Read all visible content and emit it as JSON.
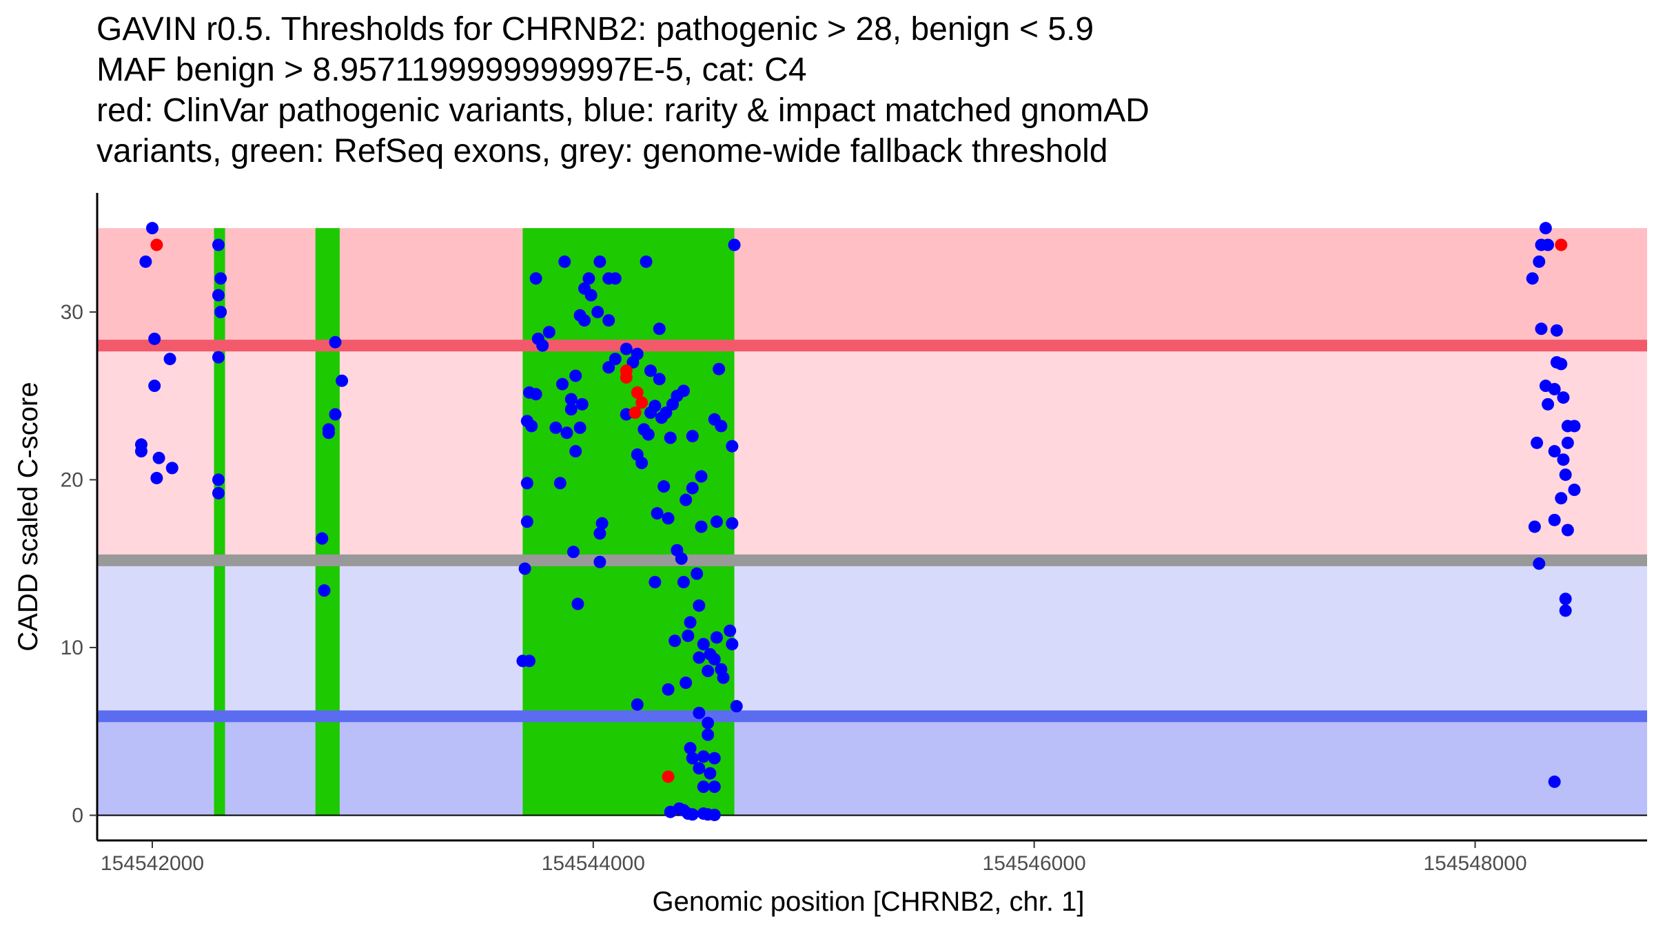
{
  "chart_data": {
    "type": "scatter",
    "title_lines": [
      "GAVIN r0.5. Thresholds for CHRNB2: pathogenic > 28, benign < 5.9",
      "MAF benign > 8.9571199999999997E-5, cat: C4",
      "red: ClinVar pathogenic variants, blue: rarity & impact matched gnomAD",
      "variants, green: RefSeq exons, grey: genome-wide fallback threshold"
    ],
    "xlabel": "Genomic position [CHRNB2, chr. 1]",
    "ylabel": "CADD scaled C-score",
    "xlim": [
      154541750,
      154548780
    ],
    "ylim": [
      -1.5,
      37.1
    ],
    "x_ticks": [
      154542000,
      154544000,
      154546000,
      154548000
    ],
    "x_tick_labels": [
      "154542000",
      "154544000",
      "154546000",
      "154548000"
    ],
    "y_ticks": [
      0,
      10,
      20,
      30
    ],
    "y_tick_labels": [
      "0",
      "10",
      "20",
      "30"
    ],
    "grid": false,
    "regions": [
      {
        "name": "pathogenic-zone-high",
        "y0": 28,
        "y1": 35,
        "color": "#FFBFC4"
      },
      {
        "name": "pathogenic-zone-low",
        "y0": 15.2,
        "y1": 28,
        "color": "#FFD7DD"
      },
      {
        "name": "fallback-zone",
        "y0": 5.9,
        "y1": 15.2,
        "color": "#D8DAFC"
      },
      {
        "name": "benign-zone",
        "y0": 0,
        "y1": 5.9,
        "color": "#BABFFA"
      }
    ],
    "threshold_lines": [
      {
        "name": "pathogenic-threshold",
        "y": 28,
        "color": "#F25A6B"
      },
      {
        "name": "fallback-threshold",
        "y": 15.2,
        "color": "#999999"
      },
      {
        "name": "benign-threshold",
        "y": 5.9,
        "color": "#5B6CF0"
      }
    ],
    "exons": [
      {
        "x0": 154542280,
        "x1": 154542330
      },
      {
        "x0": 154542740,
        "x1": 154542850
      },
      {
        "x0": 154543680,
        "x1": 154544640
      }
    ],
    "exon_color": "#1DC900",
    "series": [
      {
        "name": "gnomAD matched variants",
        "color": "#0000FF",
        "points": [
          [
            154542000,
            35
          ],
          [
            154541970,
            33
          ],
          [
            154542010,
            28.4
          ],
          [
            154542010,
            25.6
          ],
          [
            154542080,
            27.2
          ],
          [
            154541950,
            22.1
          ],
          [
            154541950,
            21.7
          ],
          [
            154542030,
            21.3
          ],
          [
            154542090,
            20.7
          ],
          [
            154542020,
            20.1
          ],
          [
            154542300,
            34
          ],
          [
            154542310,
            32
          ],
          [
            154542300,
            31
          ],
          [
            154542310,
            30
          ],
          [
            154542300,
            27.3
          ],
          [
            154542300,
            20
          ],
          [
            154542300,
            19.2
          ],
          [
            154542770,
            16.5
          ],
          [
            154542780,
            13.4
          ],
          [
            154542800,
            23
          ],
          [
            154542800,
            22.8
          ],
          [
            154542830,
            28.2
          ],
          [
            154542830,
            23.9
          ],
          [
            154542860,
            25.9
          ],
          [
            154543740,
            32
          ],
          [
            154543870,
            33
          ],
          [
            154544030,
            33
          ],
          [
            154544070,
            32
          ],
          [
            154544100,
            32
          ],
          [
            154543960,
            31.4
          ],
          [
            154543980,
            32
          ],
          [
            154543990,
            31
          ],
          [
            154544020,
            30
          ],
          [
            154543940,
            29.8
          ],
          [
            154543960,
            29.5
          ],
          [
            154544070,
            29.5
          ],
          [
            154543800,
            28.8
          ],
          [
            154543750,
            28.4
          ],
          [
            154543770,
            28
          ],
          [
            154544150,
            27.8
          ],
          [
            154544200,
            27.5
          ],
          [
            154544100,
            27.2
          ],
          [
            154544180,
            27
          ],
          [
            154544070,
            26.7
          ],
          [
            154544260,
            26.5
          ],
          [
            154543920,
            26.2
          ],
          [
            154543860,
            25.7
          ],
          [
            154543710,
            25.2
          ],
          [
            154543740,
            25.1
          ],
          [
            154543900,
            24.8
          ],
          [
            154543950,
            24.5
          ],
          [
            154543900,
            24.2
          ],
          [
            154544260,
            24
          ],
          [
            154544150,
            23.9
          ],
          [
            154543700,
            23.5
          ],
          [
            154543720,
            23.2
          ],
          [
            154543830,
            23.1
          ],
          [
            154543880,
            22.8
          ],
          [
            154543940,
            23.1
          ],
          [
            154544230,
            23
          ],
          [
            154544250,
            22.7
          ],
          [
            154543920,
            21.7
          ],
          [
            154543700,
            19.8
          ],
          [
            154543850,
            19.8
          ],
          [
            154543700,
            17.5
          ],
          [
            154543910,
            15.7
          ],
          [
            154543690,
            14.7
          ],
          [
            154543930,
            12.6
          ],
          [
            154543680,
            9.2
          ],
          [
            154543710,
            9.2
          ],
          [
            154544030,
            15.1
          ],
          [
            154544040,
            17.4
          ],
          [
            154544030,
            16.8
          ],
          [
            154544200,
            21.5
          ],
          [
            154544220,
            21
          ],
          [
            154544290,
            18
          ],
          [
            154544320,
            19.6
          ],
          [
            154544340,
            17.7
          ],
          [
            154544300,
            29
          ],
          [
            154544240,
            33
          ],
          [
            154544640,
            34
          ],
          [
            154544570,
            26.6
          ],
          [
            154544550,
            23.6
          ],
          [
            154544580,
            23.2
          ],
          [
            154544630,
            22
          ],
          [
            154544450,
            22.6
          ],
          [
            154544490,
            20.2
          ],
          [
            154544450,
            19.5
          ],
          [
            154544420,
            18.8
          ],
          [
            154544560,
            17.5
          ],
          [
            154544630,
            17.4
          ],
          [
            154544490,
            17.2
          ],
          [
            154544400,
            15.3
          ],
          [
            154544380,
            15.8
          ],
          [
            154544470,
            14.4
          ],
          [
            154544410,
            13.9
          ],
          [
            154544280,
            13.9
          ],
          [
            154544480,
            12.5
          ],
          [
            154544440,
            11.5
          ],
          [
            154544430,
            10.7
          ],
          [
            154544500,
            10.2
          ],
          [
            154544370,
            10.4
          ],
          [
            154544480,
            9.4
          ],
          [
            154544530,
            9.6
          ],
          [
            154544560,
            10.6
          ],
          [
            154544620,
            11
          ],
          [
            154544630,
            10.2
          ],
          [
            154544550,
            9.3
          ],
          [
            154544520,
            8.6
          ],
          [
            154544580,
            8.7
          ],
          [
            154544590,
            8.2
          ],
          [
            154544420,
            7.9
          ],
          [
            154544340,
            7.5
          ],
          [
            154544200,
            6.6
          ],
          [
            154544650,
            6.5
          ],
          [
            154544480,
            6.1
          ],
          [
            154544520,
            5.5
          ],
          [
            154544520,
            4.8
          ],
          [
            154544440,
            4
          ],
          [
            154544450,
            3.4
          ],
          [
            154544500,
            3.5
          ],
          [
            154544550,
            3.4
          ],
          [
            154544480,
            2.8
          ],
          [
            154544530,
            2.5
          ],
          [
            154544500,
            1.7
          ],
          [
            154544550,
            1.7
          ],
          [
            154544390,
            0.4
          ],
          [
            154544410,
            0.3
          ],
          [
            154544350,
            0.2
          ],
          [
            154544430,
            0.1
          ],
          [
            154544450,
            0.05
          ],
          [
            154544500,
            0.1
          ],
          [
            154544520,
            0.05
          ],
          [
            154544550,
            0.02
          ],
          [
            154544410,
            25.3
          ],
          [
            154544380,
            25
          ],
          [
            154544360,
            24.5
          ],
          [
            154544330,
            24
          ],
          [
            154544310,
            23.7
          ],
          [
            154544280,
            24.4
          ],
          [
            154544350,
            22.5
          ],
          [
            154544300,
            26
          ],
          [
            154548320,
            35
          ],
          [
            154548300,
            34
          ],
          [
            154548330,
            34
          ],
          [
            154548290,
            33
          ],
          [
            154548260,
            32
          ],
          [
            154548300,
            29
          ],
          [
            154548370,
            28.9
          ],
          [
            154548370,
            27
          ],
          [
            154548390,
            26.9
          ],
          [
            154548320,
            25.6
          ],
          [
            154548360,
            25.4
          ],
          [
            154548400,
            24.9
          ],
          [
            154548330,
            24.5
          ],
          [
            154548420,
            23.2
          ],
          [
            154548450,
            23.2
          ],
          [
            154548280,
            22.2
          ],
          [
            154548420,
            22.2
          ],
          [
            154548360,
            21.7
          ],
          [
            154548400,
            21.2
          ],
          [
            154548410,
            20.3
          ],
          [
            154548450,
            19.4
          ],
          [
            154548390,
            18.9
          ],
          [
            154548360,
            17.6
          ],
          [
            154548270,
            17.2
          ],
          [
            154548420,
            17
          ],
          [
            154548290,
            15
          ],
          [
            154548410,
            12.9
          ],
          [
            154548410,
            12.2
          ],
          [
            154548360,
            2
          ]
        ]
      },
      {
        "name": "ClinVar pathogenic variants",
        "color": "#FF0000",
        "points": [
          [
            154542020,
            34
          ],
          [
            154548390,
            34
          ],
          [
            154544150,
            26.5
          ],
          [
            154544150,
            26.1
          ],
          [
            154544200,
            25.2
          ],
          [
            154544220,
            24.6
          ],
          [
            154544190,
            24
          ],
          [
            154544340,
            2.3
          ]
        ]
      }
    ]
  }
}
